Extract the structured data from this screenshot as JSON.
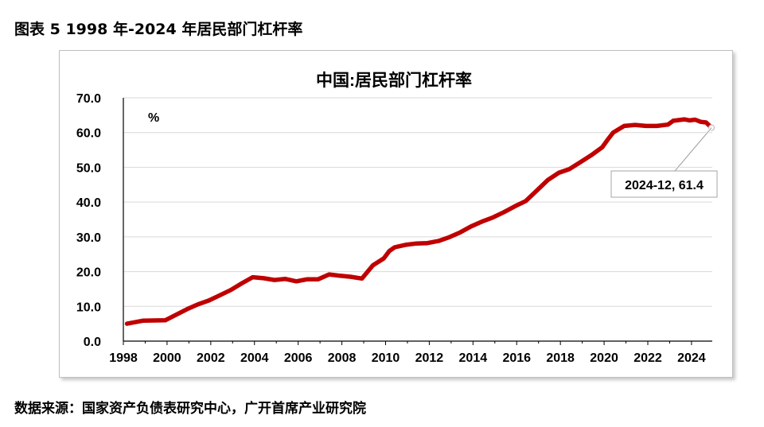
{
  "figure_caption": "图表 5 1998 年-2024 年居民部门杠杆率",
  "source_note": "数据来源：国家资产负债表研究中心，广开首席产业研究院",
  "chart_data": {
    "type": "line",
    "title": "中国:居民部门杠杆率",
    "unit_label": "%",
    "xlabel": "",
    "ylabel": "",
    "ylim": [
      0,
      70
    ],
    "xlim": [
      1998,
      2024.95
    ],
    "y_ticks": [
      "0.0",
      "10.0",
      "20.0",
      "30.0",
      "40.0",
      "50.0",
      "60.0",
      "70.0"
    ],
    "x_ticks": [
      "1998",
      "2000",
      "2002",
      "2004",
      "2006",
      "2008",
      "2010",
      "2012",
      "2014",
      "2016",
      "2018",
      "2020",
      "2022",
      "2024"
    ],
    "grid": true,
    "line_color": "#c00000",
    "annotation": {
      "text": "2024-12, 61.4",
      "x": "2024-12",
      "y": 61.4
    },
    "series": [
      {
        "name": "",
        "x": [
          "1998-03",
          "1998-12",
          "1999-12",
          "2000-12",
          "2001-06",
          "2001-12",
          "2002-06",
          "2002-12",
          "2003-06",
          "2003-12",
          "2004-06",
          "2004-12",
          "2005-06",
          "2005-12",
          "2006-06",
          "2006-12",
          "2007-06",
          "2007-12",
          "2008-06",
          "2008-12",
          "2009-06",
          "2009-12",
          "2010-03",
          "2010-06",
          "2010-12",
          "2011-06",
          "2011-12",
          "2012-06",
          "2012-12",
          "2013-06",
          "2013-12",
          "2014-06",
          "2014-12",
          "2015-06",
          "2015-12",
          "2016-06",
          "2016-12",
          "2017-06",
          "2017-12",
          "2018-06",
          "2018-12",
          "2019-06",
          "2019-12",
          "2020-03",
          "2020-06",
          "2020-12",
          "2021-06",
          "2021-12",
          "2022-06",
          "2022-12",
          "2023-03",
          "2023-06",
          "2023-09",
          "2023-12",
          "2024-03",
          "2024-06",
          "2024-09",
          "2024-12"
        ],
        "values": [
          5.0,
          5.9,
          6.0,
          9.2,
          10.6,
          11.7,
          13.2,
          14.7,
          16.6,
          18.4,
          18.1,
          17.6,
          17.9,
          17.2,
          17.8,
          17.8,
          19.2,
          18.8,
          18.5,
          18.0,
          21.8,
          23.8,
          25.9,
          27.0,
          27.7,
          28.1,
          28.2,
          28.8,
          29.9,
          31.3,
          33.0,
          34.4,
          35.6,
          37.1,
          38.8,
          40.3,
          43.3,
          46.3,
          48.4,
          49.5,
          51.5,
          53.5,
          55.8,
          58.0,
          60.0,
          61.9,
          62.2,
          61.9,
          61.9,
          62.3,
          63.4,
          63.6,
          63.8,
          63.5,
          63.7,
          63.1,
          62.9,
          61.4
        ]
      }
    ]
  }
}
